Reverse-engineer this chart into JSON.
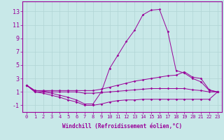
{
  "xlabel": "Windchill (Refroidissement éolien,°C)",
  "background_color": "#c8e8e8",
  "line_color": "#990099",
  "grid_color": "#b0d4d4",
  "xlim": [
    -0.5,
    23.5
  ],
  "ylim": [
    -2,
    14.5
  ],
  "xticks": [
    0,
    1,
    2,
    3,
    4,
    5,
    6,
    7,
    8,
    9,
    10,
    11,
    12,
    13,
    14,
    15,
    16,
    17,
    18,
    19,
    20,
    21,
    22,
    23
  ],
  "yticks": [
    -1,
    1,
    3,
    5,
    7,
    9,
    11,
    13
  ],
  "line_top": [
    2,
    1,
    1,
    0.8,
    0.5,
    0.2,
    -0.2,
    -0.8,
    -0.8,
    1.0,
    4.5,
    6.5,
    8.5,
    10.2,
    12.5,
    13.2,
    13.3,
    10.0,
    4.2,
    3.8,
    3.0,
    2.5,
    1.2,
    1.0
  ],
  "line_upper_mid": [
    2,
    1.2,
    1.2,
    1.2,
    1.2,
    1.2,
    1.2,
    1.2,
    1.2,
    1.4,
    1.7,
    2.0,
    2.3,
    2.6,
    2.8,
    3.0,
    3.2,
    3.4,
    3.5,
    4.0,
    3.2,
    3.0,
    1.3,
    1.0
  ],
  "line_lower_mid": [
    2,
    1.2,
    1.1,
    1.0,
    1.0,
    1.0,
    1.0,
    0.8,
    0.8,
    0.9,
    1.0,
    1.1,
    1.2,
    1.3,
    1.4,
    1.5,
    1.5,
    1.5,
    1.5,
    1.5,
    1.3,
    1.2,
    1.0,
    1.0
  ],
  "line_bottom": [
    2,
    1.0,
    0.8,
    0.5,
    0.2,
    -0.2,
    -0.5,
    -1.0,
    -1.0,
    -0.8,
    -0.5,
    -0.3,
    -0.2,
    -0.2,
    -0.1,
    -0.1,
    -0.1,
    -0.1,
    -0.1,
    -0.1,
    -0.1,
    -0.1,
    -0.1,
    1.0
  ],
  "tick_fontsize": 5,
  "xlabel_fontsize": 5.5
}
